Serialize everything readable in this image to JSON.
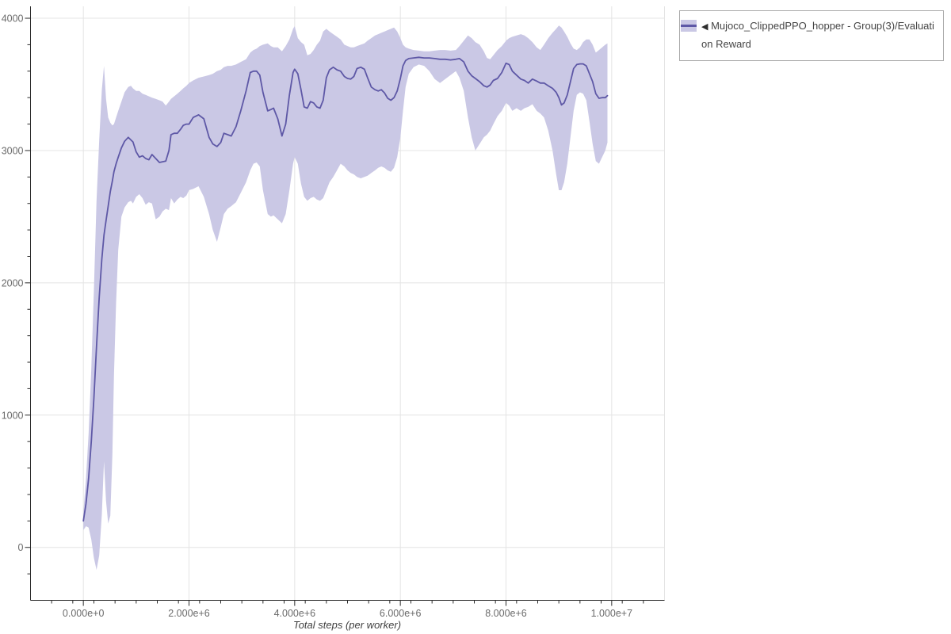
{
  "page": {
    "background": "#ffffff"
  },
  "colors": {
    "line": "#5e58a6",
    "band": "#cac8e5",
    "grid": "#e4e4e4",
    "spine": "#2b2b2b",
    "tick": "#2b2b2b",
    "tick_label": "#6b6b6b",
    "axis_label": "#3f3f3f",
    "legend_border": "#ababab",
    "legend_text": "#454545"
  },
  "legend": {
    "marker": "◀",
    "label": "Mujoco_ClippedPPO_hopper - Group(3)/Evaluation Reward"
  },
  "chart_data": {
    "type": "line",
    "title": "",
    "xlabel": "Total steps (per worker)",
    "ylabel": "",
    "grid": true,
    "legend_position": "outside-top-right",
    "xlim": [
      -1000000,
      11000000
    ],
    "ylim": [
      -400,
      4090
    ],
    "x_multiplier": 1000000,
    "x_minor_step": 400000,
    "y_minor_step": 200,
    "x_ticks": [
      {
        "value": 0,
        "label": "0.000e+0"
      },
      {
        "value": 2000000,
        "label": "2.000e+6"
      },
      {
        "value": 4000000,
        "label": "4.000e+6"
      },
      {
        "value": 6000000,
        "label": "6.000e+6"
      },
      {
        "value": 8000000,
        "label": "8.000e+6"
      },
      {
        "value": 10000000,
        "label": "1.000e+7"
      }
    ],
    "y_ticks": [
      {
        "value": 0,
        "label": "0"
      },
      {
        "value": 1000,
        "label": "1000"
      },
      {
        "value": 2000,
        "label": "2000"
      },
      {
        "value": 3000,
        "label": "3000"
      },
      {
        "value": 4000,
        "label": "4000"
      }
    ],
    "series": [
      {
        "name": "Mujoco_ClippedPPO_hopper - Group(3)/Evaluation Reward",
        "line_color": "#5e58a6",
        "band_color": "#cac8e5",
        "points_format": [
          "x_millions_of_steps",
          "band_low",
          "mean",
          "band_high"
        ],
        "points": [
          [
            0.0,
            130,
            200,
            270
          ],
          [
            0.05,
            160,
            330,
            520
          ],
          [
            0.1,
            150,
            520,
            860
          ],
          [
            0.15,
            60,
            800,
            1350
          ],
          [
            0.2,
            -80,
            1130,
            1950
          ],
          [
            0.25,
            -170,
            1520,
            2620
          ],
          [
            0.3,
            -60,
            1890,
            3080
          ],
          [
            0.35,
            250,
            2180,
            3460
          ],
          [
            0.39,
            650,
            2360,
            3640
          ],
          [
            0.43,
            350,
            2470,
            3390
          ],
          [
            0.47,
            180,
            2580,
            3250
          ],
          [
            0.51,
            240,
            2690,
            3210
          ],
          [
            0.55,
            700,
            2770,
            3190
          ],
          [
            0.58,
            1300,
            2840,
            3200
          ],
          [
            0.62,
            1850,
            2900,
            3250
          ],
          [
            0.66,
            2250,
            2950,
            3300
          ],
          [
            0.72,
            2500,
            3020,
            3370
          ],
          [
            0.78,
            2570,
            3070,
            3440
          ],
          [
            0.85,
            2610,
            3100,
            3480
          ],
          [
            0.9,
            2620,
            3080,
            3490
          ],
          [
            0.94,
            2600,
            3065,
            3470
          ],
          [
            1.0,
            2650,
            2990,
            3450
          ],
          [
            1.06,
            2670,
            2950,
            3450
          ],
          [
            1.12,
            2640,
            2960,
            3430
          ],
          [
            1.18,
            2590,
            2940,
            3420
          ],
          [
            1.24,
            2610,
            2930,
            3410
          ],
          [
            1.3,
            2600,
            2970,
            3400
          ],
          [
            1.37,
            2480,
            2940,
            3390
          ],
          [
            1.44,
            2500,
            2910,
            3380
          ],
          [
            1.5,
            2540,
            2915,
            3370
          ],
          [
            1.56,
            2560,
            2920,
            3340
          ],
          [
            1.62,
            2550,
            3000,
            3370
          ],
          [
            1.66,
            2640,
            3120,
            3390
          ],
          [
            1.72,
            2600,
            3130,
            3410
          ],
          [
            1.78,
            2630,
            3130,
            3430
          ],
          [
            1.84,
            2650,
            3160,
            3450
          ],
          [
            1.89,
            2640,
            3190,
            3470
          ],
          [
            1.95,
            2660,
            3200,
            3490
          ],
          [
            2.0,
            2700,
            3200,
            3510
          ],
          [
            2.08,
            2710,
            3250,
            3530
          ],
          [
            2.18,
            2730,
            3270,
            3550
          ],
          [
            2.28,
            2650,
            3240,
            3560
          ],
          [
            2.38,
            2520,
            3100,
            3570
          ],
          [
            2.45,
            2400,
            3050,
            3580
          ],
          [
            2.53,
            2310,
            3030,
            3600
          ],
          [
            2.6,
            2420,
            3060,
            3610
          ],
          [
            2.66,
            2520,
            3130,
            3630
          ],
          [
            2.73,
            2560,
            3120,
            3640
          ],
          [
            2.8,
            2580,
            3110,
            3640
          ],
          [
            2.89,
            2610,
            3180,
            3650
          ],
          [
            2.98,
            2680,
            3300,
            3670
          ],
          [
            3.08,
            2760,
            3450,
            3690
          ],
          [
            3.16,
            2850,
            3590,
            3740
          ],
          [
            3.22,
            2900,
            3600,
            3760
          ],
          [
            3.28,
            2910,
            3600,
            3770
          ],
          [
            3.34,
            2880,
            3570,
            3790
          ],
          [
            3.4,
            2700,
            3440,
            3800
          ],
          [
            3.49,
            2520,
            3300,
            3810
          ],
          [
            3.55,
            2500,
            3310,
            3790
          ],
          [
            3.6,
            2510,
            3320,
            3780
          ],
          [
            3.68,
            2480,
            3240,
            3780
          ],
          [
            3.76,
            2450,
            3110,
            3750
          ],
          [
            3.83,
            2520,
            3200,
            3790
          ],
          [
            3.9,
            2700,
            3420,
            3840
          ],
          [
            3.97,
            2900,
            3590,
            3920
          ],
          [
            4.0,
            2950,
            3615,
            3940
          ],
          [
            4.06,
            2900,
            3580,
            3850
          ],
          [
            4.12,
            2750,
            3460,
            3820
          ],
          [
            4.18,
            2650,
            3330,
            3800
          ],
          [
            4.24,
            2620,
            3320,
            3720
          ],
          [
            4.3,
            2640,
            3370,
            3730
          ],
          [
            4.36,
            2650,
            3360,
            3760
          ],
          [
            4.42,
            2630,
            3330,
            3800
          ],
          [
            4.48,
            2620,
            3320,
            3830
          ],
          [
            4.54,
            2640,
            3380,
            3900
          ],
          [
            4.6,
            2700,
            3550,
            3920
          ],
          [
            4.66,
            2760,
            3610,
            3900
          ],
          [
            4.73,
            2800,
            3630,
            3880
          ],
          [
            4.8,
            2850,
            3610,
            3860
          ],
          [
            4.87,
            2900,
            3600,
            3840
          ],
          [
            4.94,
            2880,
            3560,
            3800
          ],
          [
            5.0,
            2850,
            3545,
            3790
          ],
          [
            5.06,
            2830,
            3540,
            3780
          ],
          [
            5.12,
            2820,
            3560,
            3780
          ],
          [
            5.18,
            2800,
            3620,
            3790
          ],
          [
            5.25,
            2790,
            3630,
            3800
          ],
          [
            5.32,
            2800,
            3615,
            3810
          ],
          [
            5.38,
            2810,
            3550,
            3830
          ],
          [
            5.45,
            2830,
            3480,
            3850
          ],
          [
            5.52,
            2850,
            3460,
            3870
          ],
          [
            5.58,
            2870,
            3450,
            3880
          ],
          [
            5.64,
            2880,
            3460,
            3890
          ],
          [
            5.7,
            2870,
            3435,
            3900
          ],
          [
            5.76,
            2850,
            3395,
            3910
          ],
          [
            5.82,
            2840,
            3380,
            3920
          ],
          [
            5.88,
            2870,
            3400,
            3930
          ],
          [
            5.94,
            2950,
            3450,
            3900
          ],
          [
            6.0,
            3100,
            3545,
            3850
          ],
          [
            6.05,
            3300,
            3640,
            3800
          ],
          [
            6.1,
            3480,
            3680,
            3780
          ],
          [
            6.16,
            3580,
            3695,
            3770
          ],
          [
            6.25,
            3630,
            3700,
            3760
          ],
          [
            6.35,
            3650,
            3705,
            3755
          ],
          [
            6.45,
            3640,
            3700,
            3750
          ],
          [
            6.55,
            3600,
            3700,
            3750
          ],
          [
            6.65,
            3540,
            3695,
            3755
          ],
          [
            6.75,
            3510,
            3690,
            3760
          ],
          [
            6.85,
            3540,
            3690,
            3760
          ],
          [
            6.95,
            3570,
            3685,
            3755
          ],
          [
            7.05,
            3600,
            3690,
            3760
          ],
          [
            7.12,
            3550,
            3695,
            3790
          ],
          [
            7.2,
            3450,
            3670,
            3830
          ],
          [
            7.28,
            3250,
            3600,
            3870
          ],
          [
            7.35,
            3100,
            3565,
            3850
          ],
          [
            7.42,
            3000,
            3545,
            3820
          ],
          [
            7.5,
            3050,
            3520,
            3800
          ],
          [
            7.58,
            3100,
            3490,
            3750
          ],
          [
            7.64,
            3120,
            3480,
            3700
          ],
          [
            7.7,
            3150,
            3495,
            3690
          ],
          [
            7.76,
            3200,
            3530,
            3720
          ],
          [
            7.84,
            3260,
            3545,
            3760
          ],
          [
            7.92,
            3300,
            3590,
            3790
          ],
          [
            8.0,
            3360,
            3660,
            3830
          ],
          [
            8.06,
            3340,
            3650,
            3850
          ],
          [
            8.12,
            3300,
            3600,
            3860
          ],
          [
            8.2,
            3320,
            3570,
            3870
          ],
          [
            8.28,
            3300,
            3540,
            3880
          ],
          [
            8.35,
            3320,
            3530,
            3870
          ],
          [
            8.42,
            3330,
            3510,
            3850
          ],
          [
            8.5,
            3350,
            3540,
            3820
          ],
          [
            8.58,
            3300,
            3525,
            3780
          ],
          [
            8.65,
            3280,
            3510,
            3760
          ],
          [
            8.72,
            3250,
            3510,
            3800
          ],
          [
            8.8,
            3150,
            3490,
            3850
          ],
          [
            8.88,
            3000,
            3470,
            3890
          ],
          [
            8.95,
            2820,
            3440,
            3920
          ],
          [
            9.0,
            2700,
            3400,
            3945
          ],
          [
            9.05,
            2700,
            3345,
            3930
          ],
          [
            9.1,
            2760,
            3360,
            3900
          ],
          [
            9.16,
            2900,
            3420,
            3860
          ],
          [
            9.22,
            3100,
            3520,
            3810
          ],
          [
            9.28,
            3300,
            3620,
            3770
          ],
          [
            9.34,
            3420,
            3650,
            3760
          ],
          [
            9.4,
            3440,
            3655,
            3780
          ],
          [
            9.46,
            3430,
            3655,
            3820
          ],
          [
            9.52,
            3380,
            3640,
            3840
          ],
          [
            9.58,
            3220,
            3580,
            3840
          ],
          [
            9.64,
            3050,
            3520,
            3800
          ],
          [
            9.7,
            2920,
            3430,
            3740
          ],
          [
            9.76,
            2900,
            3395,
            3760
          ],
          [
            9.82,
            2950,
            3400,
            3780
          ],
          [
            9.88,
            3000,
            3400,
            3800
          ],
          [
            9.92,
            3060,
            3415,
            3810
          ]
        ]
      }
    ]
  }
}
